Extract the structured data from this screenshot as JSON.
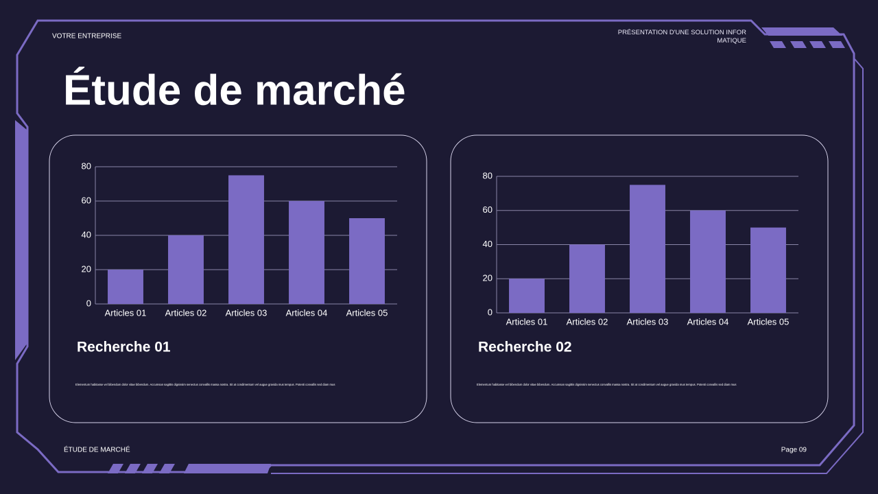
{
  "header": {
    "company": "VOTRE ENTREPRISE",
    "subtitle": "PRÉSENTATION D'UNE SOLUTION INFORMATIQUE",
    "title": "Étude de marché"
  },
  "footer": {
    "section": "ÉTUDE DE MARCHÉ",
    "page": "Page 09"
  },
  "chart_data": [
    {
      "type": "bar",
      "title": "Recherche 01",
      "caption": "Elementum habitasse vel bibendum dolor vitae bibendum. Accumsan sagittis dignissim senectus convallis massa nostra. Sit at condimentum vel augue gravida mus tempus. Potenti convallis sed diam mus",
      "categories": [
        "Articles 01",
        "Articles 02",
        "Articles 03",
        "Articles 04",
        "Articles 05"
      ],
      "values": [
        20,
        40,
        75,
        60,
        50
      ],
      "color": "#7b6bc4",
      "ylim": [
        0,
        80
      ],
      "yticks": [
        0,
        20,
        40,
        60,
        80
      ],
      "grid": true
    },
    {
      "type": "bar",
      "title": "Recherche 02",
      "caption": "Elementum habitasse vel bibendum dolor vitae bibendum. Accumsan sagittis dignissim senectus convallis massa nostra. Sit at condimentum vel augue gravida mus tempus. Potenti convallis sed diam mus",
      "categories": [
        "Articles 01",
        "Articles 02",
        "Articles 03",
        "Articles 04",
        "Articles 05"
      ],
      "values": [
        20,
        40,
        75,
        60,
        50
      ],
      "color": "#7b6bc4",
      "ylim": [
        0,
        80
      ],
      "yticks": [
        0,
        20,
        40,
        60,
        80
      ],
      "grid": true
    }
  ]
}
